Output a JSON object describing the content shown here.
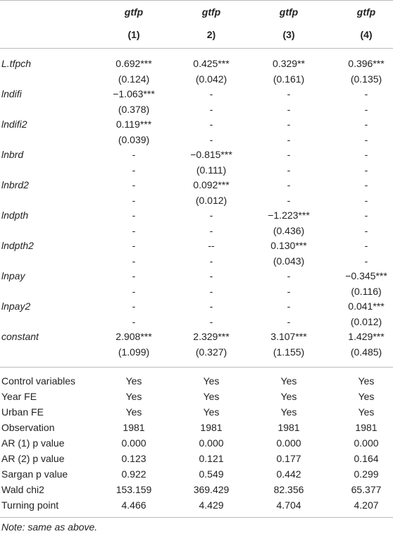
{
  "header": {
    "titles": [
      "gtfp",
      "gtfp",
      "gtfp",
      "gtfp"
    ],
    "numbers": [
      "(1)",
      "2)",
      "(3)",
      "(4)"
    ]
  },
  "variables": [
    {
      "name": "L.tfpch",
      "coef": [
        "0.692***",
        "0.425***",
        "0.329**",
        "0.396***"
      ],
      "se": [
        "(0.124)",
        "(0.042)",
        "(0.161)",
        "(0.135)"
      ]
    },
    {
      "name": "lndifi",
      "coef": [
        "−1.063***",
        "-",
        "-",
        "-"
      ],
      "se": [
        "(0.378)",
        "-",
        "-",
        "-"
      ]
    },
    {
      "name": "lndifi2",
      "coef": [
        "0.119***",
        "-",
        "-",
        "-"
      ],
      "se": [
        "(0.039)",
        "-",
        "-",
        "-"
      ]
    },
    {
      "name": "lnbrd",
      "coef": [
        "-",
        "−0.815***",
        "-",
        "-"
      ],
      "se": [
        "-",
        "(0.111)",
        "-",
        "-"
      ]
    },
    {
      "name": "lnbrd2",
      "coef": [
        "-",
        "0.092***",
        "-",
        "-"
      ],
      "se": [
        "-",
        "(0.012)",
        "-",
        "-"
      ]
    },
    {
      "name": "lndpth",
      "coef": [
        "-",
        "-",
        "−1.223***",
        "-"
      ],
      "se": [
        "-",
        "-",
        "(0.436)",
        "-"
      ]
    },
    {
      "name": "lndpth2",
      "coef": [
        "-",
        "--",
        "0.130***",
        "-"
      ],
      "se": [
        "-",
        "-",
        "(0.043)",
        "-"
      ]
    },
    {
      "name": "lnpay",
      "coef": [
        "-",
        "-",
        "-",
        "−0.345***"
      ],
      "se": [
        "-",
        "-",
        "-",
        "(0.116)"
      ]
    },
    {
      "name": "lnpay2",
      "coef": [
        "-",
        "-",
        "-",
        "0.041***"
      ],
      "se": [
        "-",
        "-",
        "-",
        "(0.012)"
      ]
    },
    {
      "name": "constant",
      "coef": [
        "2.908***",
        "2.329***",
        "3.107***",
        "1.429***"
      ],
      "se": [
        "(1.099)",
        "(0.327)",
        "(1.155)",
        "(0.485)"
      ]
    }
  ],
  "stats": [
    {
      "label": "Control variables",
      "values": [
        "Yes",
        "Yes",
        "Yes",
        "Yes"
      ]
    },
    {
      "label": "Year FE",
      "values": [
        "Yes",
        "Yes",
        "Yes",
        "Yes"
      ]
    },
    {
      "label": "Urban FE",
      "values": [
        "Yes",
        "Yes",
        "Yes",
        "Yes"
      ]
    },
    {
      "label": "Observation",
      "values": [
        "1981",
        "1981",
        "1981",
        "1981"
      ]
    },
    {
      "label": "AR (1) p value",
      "values": [
        "0.000",
        "0.000",
        "0.000",
        "0.000"
      ]
    },
    {
      "label": "AR (2) p value",
      "values": [
        "0.123",
        "0.121",
        "0.177",
        "0.164"
      ]
    },
    {
      "label": "Sargan p value",
      "values": [
        "0.922",
        "0.549",
        "0.442",
        "0.299"
      ]
    },
    {
      "label": "Wald chi2",
      "values": [
        "153.159",
        "369.429",
        "82.356",
        "65.377"
      ]
    },
    {
      "label": "Turning point",
      "values": [
        "4.466",
        "4.429",
        "4.704",
        "4.207"
      ]
    }
  ],
  "note": "Note: same as above."
}
